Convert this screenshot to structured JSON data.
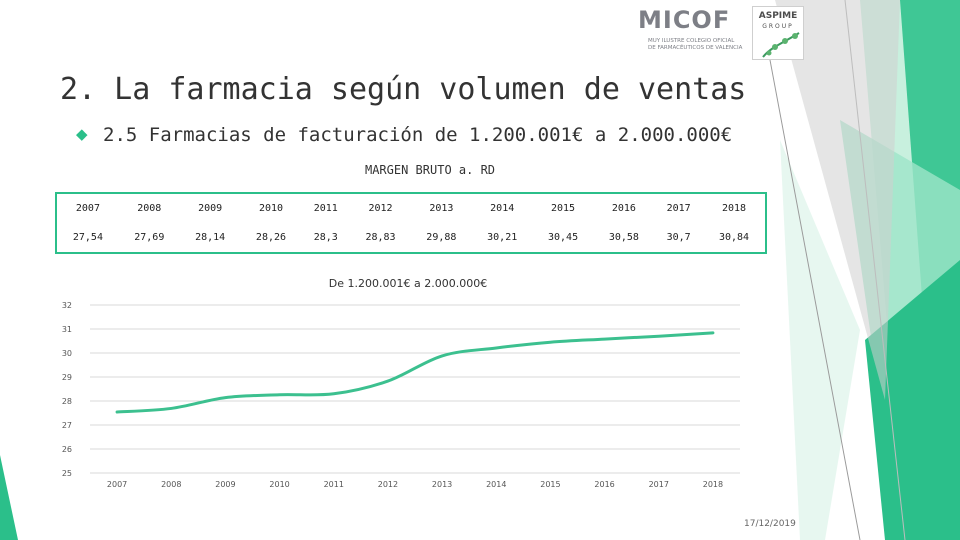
{
  "slide": {
    "title": "2. La farmacia según volumen de ventas",
    "subtitle": "2.5 Farmacias de facturación de 1.200.001€ a 2.000.000€",
    "table_title": "MARGEN BRUTO a. RD",
    "date": "17/12/2019"
  },
  "logos": {
    "micof_word": "MICOF",
    "micof_sub1": "MUY ILUSTRE COLEGIO OFICIAL",
    "micof_sub2": "DE FARMACÉUTICOS DE VALENCIA",
    "aspime_word": "ASPIME",
    "aspime_sub": "GROUP"
  },
  "colors": {
    "accent": "#2bbf8a",
    "accent_light": "#9ee5c8",
    "line": "#3cc08f"
  },
  "table": {
    "years": [
      "2007",
      "2008",
      "2009",
      "2010",
      "2011",
      "2012",
      "2013",
      "2014",
      "2015",
      "2016",
      "2017",
      "2018"
    ],
    "values": [
      "27,54",
      "27,69",
      "28,14",
      "28,26",
      "28,3",
      "28,83",
      "29,88",
      "30,21",
      "30,45",
      "30,58",
      "30,7",
      "30,84"
    ]
  },
  "chart_data": {
    "type": "line",
    "title": "De 1.200.001€ a 2.000.000€",
    "categories": [
      "2007",
      "2008",
      "2009",
      "2010",
      "2011",
      "2012",
      "2013",
      "2014",
      "2015",
      "2016",
      "2017",
      "2018"
    ],
    "series": [
      {
        "values": [
          27.54,
          27.69,
          28.14,
          28.26,
          28.3,
          28.83,
          29.88,
          30.21,
          30.45,
          30.58,
          30.7,
          30.84
        ]
      }
    ],
    "ylim": [
      25,
      32
    ],
    "yticks": [
      "25",
      "26",
      "27",
      "28",
      "29",
      "30",
      "31",
      "32"
    ],
    "grid": true,
    "legend": "none"
  }
}
